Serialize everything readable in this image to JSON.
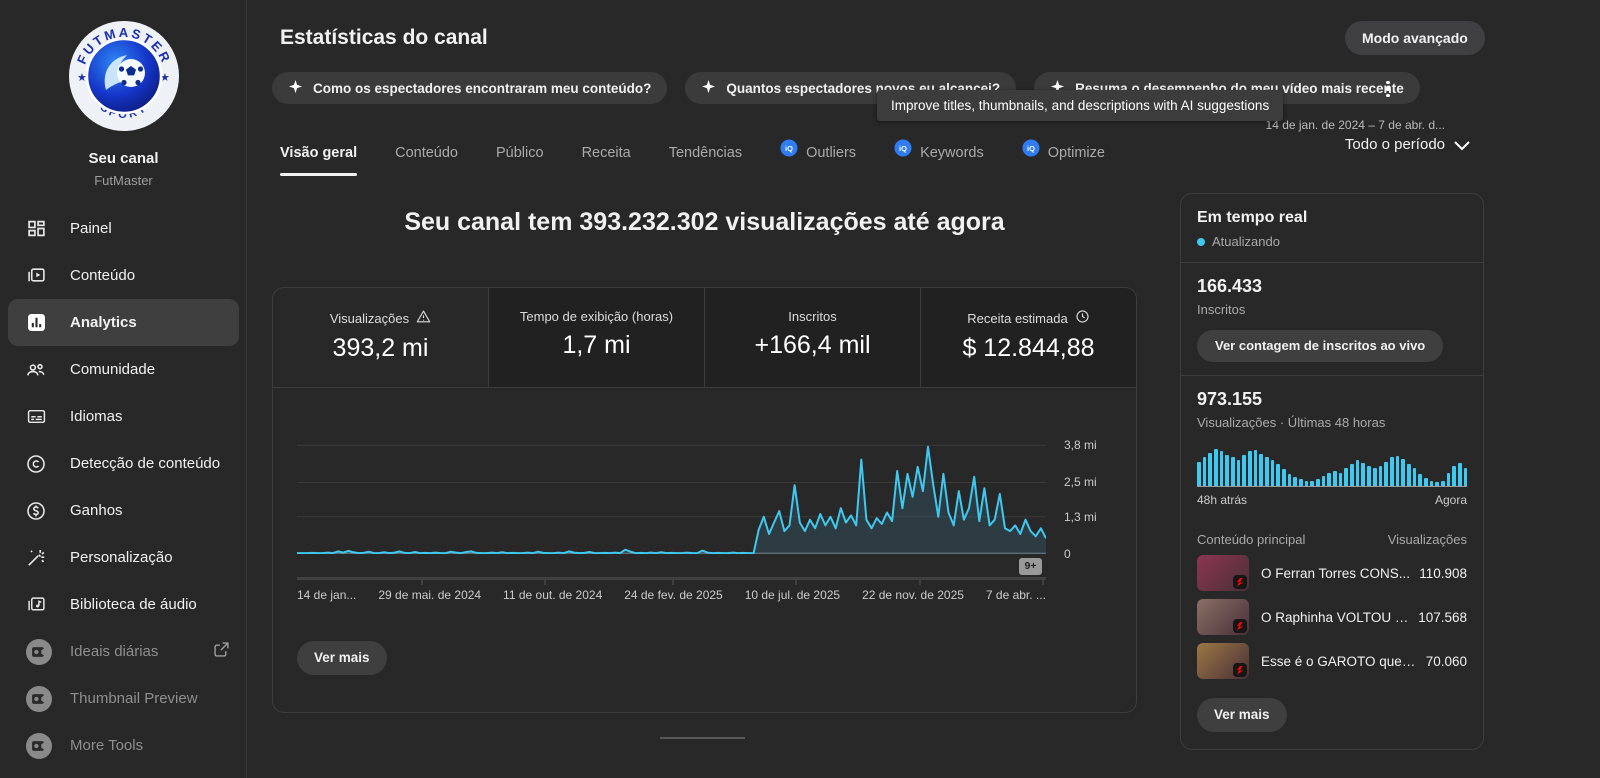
{
  "theme": {
    "background": "#282828",
    "card_border": "#3d3d3d",
    "accent_cyan": "#3fc8f0",
    "text_primary": "#f1f1f1",
    "text_secondary": "#aaaaaa",
    "vidiq_blue": "#2e7cf6",
    "dim_cell": "#212121"
  },
  "sidebar": {
    "channel": {
      "title": "Seu canal",
      "handle": "FutMaster",
      "logo_top": "FUTMASTER",
      "logo_bottom": "SPORT"
    },
    "items": [
      {
        "label": "Painel",
        "icon": "dashboard-icon"
      },
      {
        "label": "Conteúdo",
        "icon": "content-icon"
      },
      {
        "label": "Analytics",
        "icon": "analytics-icon",
        "active": true
      },
      {
        "label": "Comunidade",
        "icon": "community-icon"
      },
      {
        "label": "Idiomas",
        "icon": "subtitles-icon"
      },
      {
        "label": "Detecção de conteúdo",
        "icon": "copyright-icon"
      },
      {
        "label": "Ganhos",
        "icon": "earnings-icon"
      },
      {
        "label": "Personalização",
        "icon": "magic-wand-icon"
      },
      {
        "label": "Biblioteca de áudio",
        "icon": "audio-library-icon"
      },
      {
        "label": "Ideais diárias",
        "icon": "extension-icon",
        "external": true
      },
      {
        "label": "Thumbnail Preview",
        "icon": "extension-icon"
      },
      {
        "label": "More Tools",
        "icon": "extension-icon"
      }
    ]
  },
  "header": {
    "title": "Estatísticas do canal",
    "advanced_mode_label": "Modo avançado",
    "chips": [
      {
        "label": "Como os espectadores encontraram meu conteúdo?",
        "icon": "sparkle-icon"
      },
      {
        "label": "Quantos espectadores novos eu alcancei?",
        "icon": "sparkle-icon"
      },
      {
        "label": "Resuma o desempenho do meu vídeo mais recente",
        "icon": "sparkle-icon"
      }
    ],
    "tooltip": "Improve titles, thumbnails, and descriptions with AI suggestions"
  },
  "tabs": [
    {
      "label": "Visão geral",
      "active": true
    },
    {
      "label": "Conteúdo"
    },
    {
      "label": "Público"
    },
    {
      "label": "Receita"
    },
    {
      "label": "Tendências"
    },
    {
      "label": "Outliers",
      "vidiq": true
    },
    {
      "label": "Keywords",
      "vidiq": true
    },
    {
      "label": "Optimize",
      "vidiq": true
    }
  ],
  "date_range": {
    "range": "14 de jan. de 2024 – 7 de abr. d...",
    "period": "Todo o período"
  },
  "overview": {
    "headline": "Seu canal tem 393.232.302 visualizações até agora",
    "metrics": [
      {
        "label": "Visualizações",
        "value": "393,2 mi",
        "icon": "warning-icon",
        "selected": true
      },
      {
        "label": "Tempo de exibição (horas)",
        "value": "1,7 mi"
      },
      {
        "label": "Inscritos",
        "value": "+166,4 mil"
      },
      {
        "label": "Receita estimada",
        "value": "$ 12.844,88",
        "icon": "clock-icon"
      }
    ],
    "more_events_badge": "9+",
    "see_more_label": "Ver mais"
  },
  "chart_data": [
    {
      "type": "line",
      "series_name": "Visualizações",
      "unit": "mi",
      "ymax": 4.3,
      "ytick_values": [
        3.8,
        2.5,
        1.3,
        0
      ],
      "ytick_labels": [
        "3,8 mi",
        "2,5 mi",
        "1,3 mi",
        "0"
      ],
      "x_ticks": [
        "14 de jan...",
        "29 de mai. de 2024",
        "11 de out. de 2024",
        "24 de fev. de 2025",
        "10 de jul. de 2025",
        "22 de nov. de 2025",
        "7 de abr. ..."
      ],
      "grid": true,
      "values": [
        0.03,
        0.03,
        0.03,
        0.04,
        0.03,
        0.03,
        0.05,
        0.03,
        0.09,
        0.05,
        0.11,
        0.06,
        0.03,
        0.04,
        0.08,
        0.03,
        0.03,
        0.06,
        0.03,
        0.05,
        0.09,
        0.04,
        0.03,
        0.07,
        0.03,
        0.04,
        0.03,
        0.05,
        0.03,
        0.03,
        0.08,
        0.05,
        0.03,
        0.07,
        0.09,
        0.04,
        0.03,
        0.03,
        0.05,
        0.03,
        0.06,
        0.03,
        0.04,
        0.03,
        0.03,
        0.05,
        0.03,
        0.08,
        0.04,
        0.03,
        0.03,
        0.05,
        0.03,
        0.09,
        0.05,
        0.03,
        0.04,
        0.07,
        0.03,
        0.03,
        0.04,
        0.03,
        0.05,
        0.03,
        0.15,
        0.08,
        0.03,
        0.04,
        0.03,
        0.05,
        0.03,
        0.06,
        0.03,
        0.04,
        0.03,
        0.03,
        0.05,
        0.03,
        0.03,
        0.12,
        0.05,
        0.03,
        0.04,
        0.03,
        0.03,
        0.05,
        0.03,
        0.04,
        0.03,
        0.03,
        0.85,
        1.3,
        0.7,
        1.1,
        1.5,
        0.8,
        1.0,
        2.4,
        1.1,
        0.8,
        1.2,
        0.9,
        1.4,
        1.0,
        1.3,
        0.9,
        1.6,
        1.1,
        1.35,
        1.0,
        3.3,
        1.2,
        0.9,
        1.25,
        1.05,
        1.45,
        1.15,
        2.9,
        1.6,
        2.8,
        2.0,
        3.05,
        2.2,
        3.75,
        2.45,
        1.3,
        2.8,
        1.45,
        1.0,
        2.2,
        1.2,
        1.6,
        2.7,
        1.15,
        2.3,
        1.0,
        1.2,
        2.1,
        0.9,
        0.8,
        1.0,
        0.7,
        1.2,
        0.8,
        0.62,
        0.9,
        0.55
      ]
    },
    {
      "type": "bar",
      "series_name": "Visualizações · Últimas 48 horas",
      "x_labels": [
        "48h atrás",
        "Agora"
      ],
      "values_relative": [
        0.55,
        0.65,
        0.75,
        0.85,
        0.8,
        0.7,
        0.65,
        0.6,
        0.7,
        0.8,
        0.82,
        0.72,
        0.66,
        0.6,
        0.5,
        0.38,
        0.28,
        0.2,
        0.15,
        0.12,
        0.12,
        0.15,
        0.22,
        0.3,
        0.35,
        0.3,
        0.42,
        0.5,
        0.58,
        0.52,
        0.45,
        0.4,
        0.45,
        0.55,
        0.65,
        0.68,
        0.62,
        0.5,
        0.4,
        0.28,
        0.18,
        0.12,
        0.1,
        0.12,
        0.3,
        0.45,
        0.52,
        0.42
      ]
    }
  ],
  "realtime": {
    "title": "Em tempo real",
    "status": "Atualizando",
    "subscribers": {
      "value": "166.433",
      "label": "Inscritos",
      "live_count_button": "Ver contagem de inscritos ao vivo"
    },
    "views48h": {
      "value": "973.155",
      "label": "Visualizações · Últimas 48 horas",
      "left_label": "48h atrás",
      "right_label": "Agora"
    },
    "top_content": {
      "header": "Conteúdo principal",
      "views_header": "Visualizações",
      "rows": [
        {
          "title": "O Ferran Torres CONS...",
          "views": "110.908",
          "thumb_color": "#8d3550"
        },
        {
          "title": "O Raphinha VOLTOU a...",
          "views": "107.568",
          "thumb_color": "#8a7066"
        },
        {
          "title": "Esse é o GAROTO que o...",
          "views": "70.060",
          "thumb_color": "#9b7844"
        }
      ]
    },
    "see_more_label": "Ver mais"
  }
}
